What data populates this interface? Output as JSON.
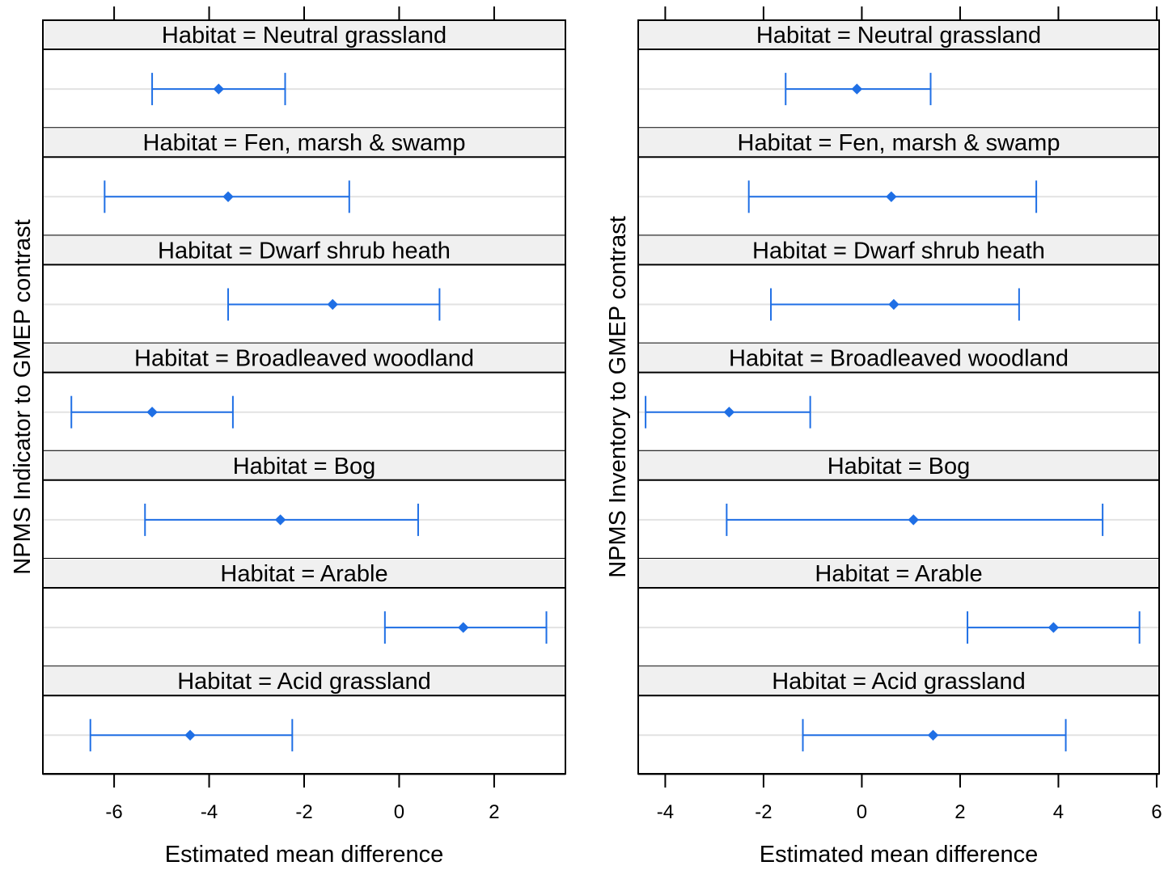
{
  "chart_data": [
    {
      "type": "forest-plot",
      "ylabel": "NPMS Indicator to GMEP contrast",
      "xlabel": "Estimated mean difference",
      "xlim": [
        -7.5,
        3.5
      ],
      "xticks": [
        -6,
        -4,
        -2,
        0,
        2
      ],
      "tick_labels": [
        "-6",
        "-4",
        "-2",
        "0",
        "2"
      ],
      "series_color": "#1f6fe5",
      "panels": [
        {
          "strip": "Habitat = Neutral grassland",
          "estimate": -3.8,
          "lower": -5.2,
          "upper": -2.4
        },
        {
          "strip": "Habitat = Fen, marsh & swamp",
          "estimate": -3.6,
          "lower": -6.2,
          "upper": -1.05
        },
        {
          "strip": "Habitat = Dwarf shrub heath",
          "estimate": -1.4,
          "lower": -3.6,
          "upper": 0.85
        },
        {
          "strip": "Habitat = Broadleaved woodland",
          "estimate": -5.2,
          "lower": -6.9,
          "upper": -3.5
        },
        {
          "strip": "Habitat = Bog",
          "estimate": -2.5,
          "lower": -5.35,
          "upper": 0.4
        },
        {
          "strip": "Habitat = Arable",
          "estimate": 1.35,
          "lower": -0.3,
          "upper": 3.1
        },
        {
          "strip": "Habitat = Acid grassland",
          "estimate": -4.4,
          "lower": -6.5,
          "upper": -2.25
        }
      ]
    },
    {
      "type": "forest-plot",
      "ylabel": "NPMS Inventory to GMEP contrast",
      "xlabel": "Estimated mean difference",
      "xlim": [
        -4.55,
        6.05
      ],
      "xticks": [
        -4,
        -2,
        0,
        2,
        4,
        6
      ],
      "tick_labels": [
        "-4",
        "-2",
        "0",
        "2",
        "4",
        "6"
      ],
      "series_color": "#1f6fe5",
      "panels": [
        {
          "strip": "Habitat = Neutral grassland",
          "estimate": -0.1,
          "lower": -1.55,
          "upper": 1.4
        },
        {
          "strip": "Habitat = Fen, marsh & swamp",
          "estimate": 0.6,
          "lower": -2.3,
          "upper": 3.55
        },
        {
          "strip": "Habitat = Dwarf shrub heath",
          "estimate": 0.65,
          "lower": -1.85,
          "upper": 3.2
        },
        {
          "strip": "Habitat = Broadleaved woodland",
          "estimate": -2.7,
          "lower": -4.4,
          "upper": -1.05
        },
        {
          "strip": "Habitat = Bog",
          "estimate": 1.05,
          "lower": -2.75,
          "upper": 4.9
        },
        {
          "strip": "Habitat = Arable",
          "estimate": 3.9,
          "lower": 2.15,
          "upper": 5.65
        },
        {
          "strip": "Habitat = Acid grassland",
          "estimate": 1.45,
          "lower": -1.2,
          "upper": 4.15
        }
      ]
    }
  ]
}
